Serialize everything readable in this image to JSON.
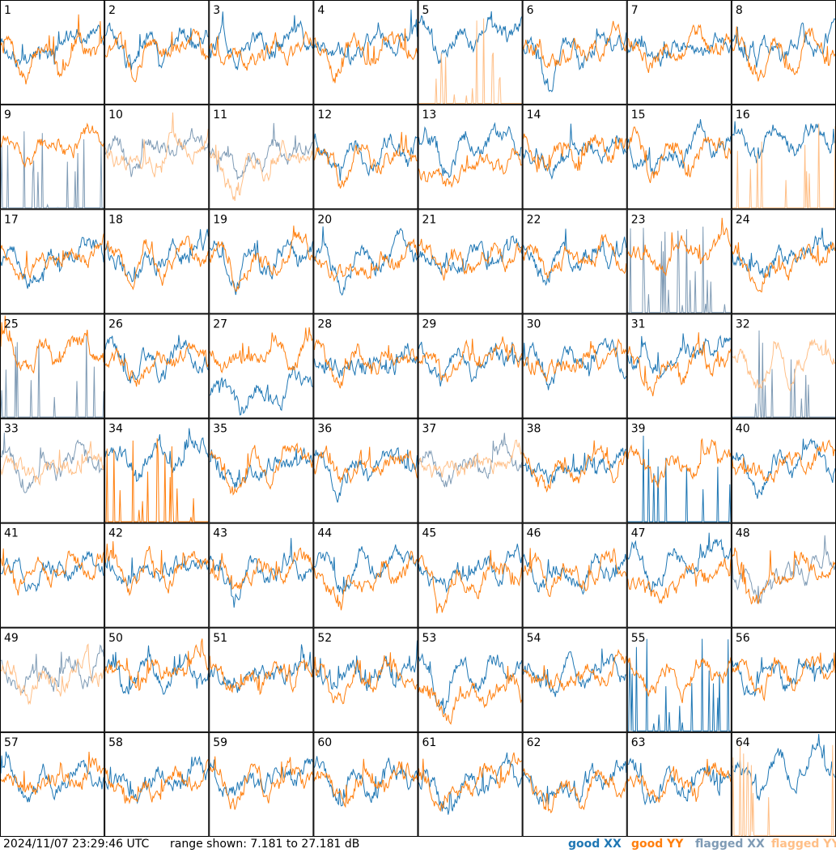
{
  "footer": {
    "timestamp": "2024/11/07 23:29:46 UTC",
    "range_text": "range shown: 7.181 to 27.181 dB"
  },
  "legend": [
    {
      "key": "good_xx",
      "label": "good XX",
      "color": "#1f77b4"
    },
    {
      "key": "good_yy",
      "label": "good YY",
      "color": "#ff7f0e"
    },
    {
      "key": "flagged_xx",
      "label": "flagged XX",
      "color": "#7f9bb5"
    },
    {
      "key": "flagged_yy",
      "label": "flagged YY",
      "color": "#ffbf87"
    }
  ],
  "chart_data": {
    "type": "line",
    "panels": [
      {
        "label": "1",
        "xx": "good",
        "yy": "good",
        "xx_level": 0.62,
        "yy_level": 0.55,
        "dip": 0.25
      },
      {
        "label": "2",
        "xx": "good",
        "yy": "good",
        "xx_level": 0.62,
        "yy_level": 0.58,
        "dip": 0.2
      },
      {
        "label": "3",
        "xx": "good",
        "yy": "good",
        "xx_level": 0.62,
        "yy_level": 0.58,
        "dip": 0.2
      },
      {
        "label": "4",
        "xx": "good",
        "yy": "good",
        "xx_level": 0.62,
        "yy_level": 0.58,
        "dip": 0.2
      },
      {
        "label": "5",
        "xx": "good",
        "yy": "flagged",
        "xx_level": 0.75,
        "yy_level": 0.0,
        "dip": 0.25
      },
      {
        "label": "6",
        "xx": "good",
        "yy": "good",
        "xx_level": 0.58,
        "yy_level": 0.62,
        "dip": 0.28
      },
      {
        "label": "7",
        "xx": "good",
        "yy": "good",
        "xx_level": 0.6,
        "yy_level": 0.6,
        "dip": 0.2
      },
      {
        "label": "8",
        "xx": "good",
        "yy": "good",
        "xx_level": 0.62,
        "yy_level": 0.55,
        "dip": 0.2
      },
      {
        "label": "9",
        "xx": "flagged",
        "yy": "good",
        "xx_level": 0.05,
        "yy_level": 0.7,
        "dip": 0.2
      },
      {
        "label": "10",
        "xx": "flagged",
        "yy": "flagged",
        "xx_level": 0.62,
        "yy_level": 0.6,
        "dip": 0.2
      },
      {
        "label": "11",
        "xx": "flagged",
        "yy": "flagged",
        "xx_level": 0.6,
        "yy_level": 0.5,
        "dip": 0.3
      },
      {
        "label": "12",
        "xx": "good",
        "yy": "good",
        "xx_level": 0.62,
        "yy_level": 0.55,
        "dip": 0.25
      },
      {
        "label": "13",
        "xx": "good",
        "yy": "good",
        "xx_level": 0.68,
        "yy_level": 0.45,
        "dip": 0.25
      },
      {
        "label": "14",
        "xx": "good",
        "yy": "good",
        "xx_level": 0.62,
        "yy_level": 0.62,
        "dip": 0.2
      },
      {
        "label": "15",
        "xx": "good",
        "yy": "good",
        "xx_level": 0.6,
        "yy_level": 0.6,
        "dip": 0.2
      },
      {
        "label": "16",
        "xx": "good",
        "yy": "flagged",
        "xx_level": 0.7,
        "yy_level": 0.0,
        "dip": 0.2
      },
      {
        "label": "17",
        "xx": "good",
        "yy": "good",
        "xx_level": 0.6,
        "yy_level": 0.6,
        "dip": 0.2
      },
      {
        "label": "18",
        "xx": "good",
        "yy": "good",
        "xx_level": 0.62,
        "yy_level": 0.58,
        "dip": 0.25
      },
      {
        "label": "19",
        "xx": "good",
        "yy": "good",
        "xx_level": 0.58,
        "yy_level": 0.62,
        "dip": 0.3
      },
      {
        "label": "20",
        "xx": "good",
        "yy": "good",
        "xx_level": 0.62,
        "yy_level": 0.55,
        "dip": 0.25
      },
      {
        "label": "21",
        "xx": "good",
        "yy": "good",
        "xx_level": 0.6,
        "yy_level": 0.6,
        "dip": 0.2
      },
      {
        "label": "22",
        "xx": "good",
        "yy": "good",
        "xx_level": 0.6,
        "yy_level": 0.6,
        "dip": 0.2
      },
      {
        "label": "23",
        "xx": "flagged",
        "yy": "good",
        "xx_level": 0.08,
        "yy_level": 0.65,
        "dip": 0.2
      },
      {
        "label": "24",
        "xx": "good",
        "yy": "good",
        "xx_level": 0.62,
        "yy_level": 0.55,
        "dip": 0.28
      },
      {
        "label": "25",
        "xx": "flagged",
        "yy": "good",
        "xx_level": 0.0,
        "yy_level": 0.68,
        "dip": 0.2
      },
      {
        "label": "26",
        "xx": "good",
        "yy": "good",
        "xx_level": 0.62,
        "yy_level": 0.6,
        "dip": 0.2
      },
      {
        "label": "27",
        "xx": "good",
        "yy": "good",
        "xx_level": 0.3,
        "yy_level": 0.65,
        "dip": 0.2
      },
      {
        "label": "28",
        "xx": "good",
        "yy": "good",
        "xx_level": 0.6,
        "yy_level": 0.6,
        "dip": 0.2
      },
      {
        "label": "29",
        "xx": "good",
        "yy": "good",
        "xx_level": 0.6,
        "yy_level": 0.6,
        "dip": 0.2
      },
      {
        "label": "30",
        "xx": "good",
        "yy": "good",
        "xx_level": 0.6,
        "yy_level": 0.6,
        "dip": 0.2
      },
      {
        "label": "31",
        "xx": "good",
        "yy": "good",
        "xx_level": 0.68,
        "yy_level": 0.55,
        "dip": 0.25
      },
      {
        "label": "32",
        "xx": "flagged",
        "yy": "flagged",
        "xx_level": 0.0,
        "yy_level": 0.6,
        "dip": 0.25
      },
      {
        "label": "33",
        "xx": "flagged",
        "yy": "flagged",
        "xx_level": 0.62,
        "yy_level": 0.6,
        "dip": 0.2
      },
      {
        "label": "34",
        "xx": "good",
        "yy": "good",
        "xx_level": 0.72,
        "yy_level": 0.02,
        "dip": 0.2
      },
      {
        "label": "35",
        "xx": "good",
        "yy": "good",
        "xx_level": 0.58,
        "yy_level": 0.62,
        "dip": 0.28
      },
      {
        "label": "36",
        "xx": "good",
        "yy": "good",
        "xx_level": 0.6,
        "yy_level": 0.6,
        "dip": 0.2
      },
      {
        "label": "37",
        "xx": "flagged",
        "yy": "flagged",
        "xx_level": 0.62,
        "yy_level": 0.6,
        "dip": 0.2
      },
      {
        "label": "38",
        "xx": "good",
        "yy": "good",
        "xx_level": 0.6,
        "yy_level": 0.6,
        "dip": 0.2
      },
      {
        "label": "39",
        "xx": "good",
        "yy": "good",
        "xx_level": 0.02,
        "yy_level": 0.65,
        "dip": 0.2
      },
      {
        "label": "40",
        "xx": "good",
        "yy": "good",
        "xx_level": 0.6,
        "yy_level": 0.6,
        "dip": 0.2
      },
      {
        "label": "41",
        "xx": "good",
        "yy": "good",
        "xx_level": 0.6,
        "yy_level": 0.6,
        "dip": 0.2
      },
      {
        "label": "42",
        "xx": "good",
        "yy": "good",
        "xx_level": 0.6,
        "yy_level": 0.6,
        "dip": 0.2
      },
      {
        "label": "43",
        "xx": "good",
        "yy": "good",
        "xx_level": 0.6,
        "yy_level": 0.6,
        "dip": 0.2
      },
      {
        "label": "44",
        "xx": "good",
        "yy": "good",
        "xx_level": 0.66,
        "yy_level": 0.55,
        "dip": 0.25
      },
      {
        "label": "45",
        "xx": "good",
        "yy": "good",
        "xx_level": 0.62,
        "yy_level": 0.56,
        "dip": 0.3
      },
      {
        "label": "46",
        "xx": "good",
        "yy": "good",
        "xx_level": 0.6,
        "yy_level": 0.6,
        "dip": 0.2
      },
      {
        "label": "47",
        "xx": "good",
        "yy": "good",
        "xx_level": 0.7,
        "yy_level": 0.5,
        "dip": 0.25
      },
      {
        "label": "48",
        "xx": "flagged",
        "yy": "good",
        "xx_level": 0.55,
        "yy_level": 0.6,
        "dip": 0.3
      },
      {
        "label": "49",
        "xx": "flagged",
        "yy": "flagged",
        "xx_level": 0.62,
        "yy_level": 0.6,
        "dip": 0.2
      },
      {
        "label": "50",
        "xx": "good",
        "yy": "good",
        "xx_level": 0.6,
        "yy_level": 0.65,
        "dip": 0.2
      },
      {
        "label": "51",
        "xx": "good",
        "yy": "good",
        "xx_level": 0.6,
        "yy_level": 0.6,
        "dip": 0.2
      },
      {
        "label": "52",
        "xx": "good",
        "yy": "good",
        "xx_level": 0.65,
        "yy_level": 0.55,
        "dip": 0.25
      },
      {
        "label": "53",
        "xx": "good",
        "yy": "good",
        "xx_level": 0.65,
        "yy_level": 0.45,
        "dip": 0.35
      },
      {
        "label": "54",
        "xx": "good",
        "yy": "good",
        "xx_level": 0.6,
        "yy_level": 0.6,
        "dip": 0.2
      },
      {
        "label": "55",
        "xx": "good",
        "yy": "good",
        "xx_level": 0.05,
        "yy_level": 0.62,
        "dip": 0.2
      },
      {
        "label": "56",
        "xx": "good",
        "yy": "good",
        "xx_level": 0.6,
        "yy_level": 0.6,
        "dip": 0.2
      },
      {
        "label": "57",
        "xx": "good",
        "yy": "good",
        "xx_level": 0.6,
        "yy_level": 0.6,
        "dip": 0.2
      },
      {
        "label": "58",
        "xx": "good",
        "yy": "good",
        "xx_level": 0.6,
        "yy_level": 0.58,
        "dip": 0.25
      },
      {
        "label": "59",
        "xx": "good",
        "yy": "good",
        "xx_level": 0.6,
        "yy_level": 0.6,
        "dip": 0.2
      },
      {
        "label": "60",
        "xx": "good",
        "yy": "good",
        "xx_level": 0.6,
        "yy_level": 0.6,
        "dip": 0.2
      },
      {
        "label": "61",
        "xx": "good",
        "yy": "good",
        "xx_level": 0.58,
        "yy_level": 0.62,
        "dip": 0.3
      },
      {
        "label": "62",
        "xx": "good",
        "yy": "good",
        "xx_level": 0.58,
        "yy_level": 0.55,
        "dip": 0.3
      },
      {
        "label": "63",
        "xx": "good",
        "yy": "good",
        "xx_level": 0.6,
        "yy_level": 0.6,
        "dip": 0.2
      },
      {
        "label": "64",
        "xx": "good",
        "yy": "flagged",
        "xx_level": 0.7,
        "yy_level": 0.0,
        "dip": 0.2
      }
    ],
    "y_range_db": [
      7.181,
      27.181
    ],
    "grid": false,
    "legend_placement": "bottom-right"
  }
}
